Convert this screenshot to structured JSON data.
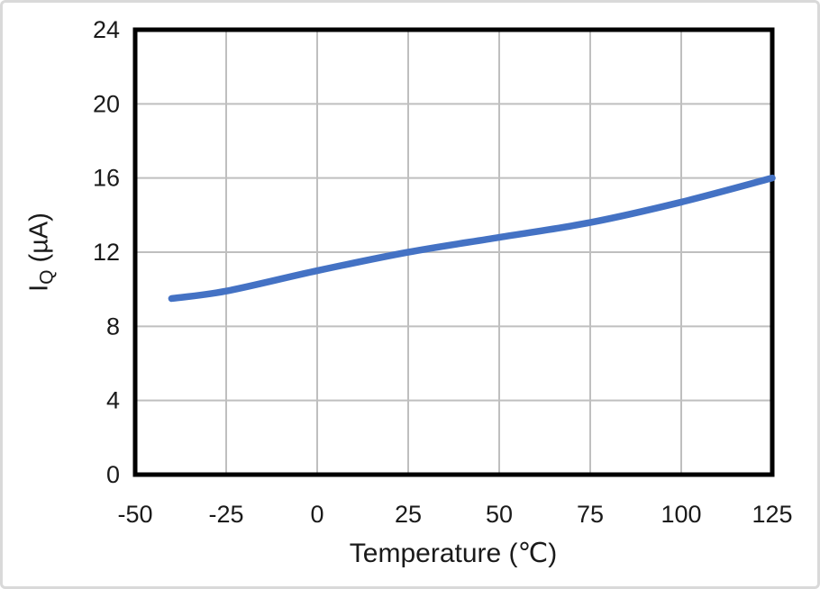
{
  "frame": {
    "background": "#ffffff",
    "border_color": "#d9d9d9"
  },
  "chart_data": {
    "type": "line",
    "title": "",
    "xlabel": "Temperature (℃)",
    "ylabel": "IQ (µA)",
    "ylabel_parts": {
      "base": "I",
      "sub": "Q",
      "unit": " (µA)"
    },
    "series": [
      {
        "name": "IQ",
        "x": [
          -40,
          -25,
          0,
          25,
          50,
          75,
          100,
          125
        ],
        "values": [
          9.5,
          9.9,
          11.0,
          12.0,
          12.8,
          13.6,
          14.7,
          16.0
        ]
      }
    ],
    "xlim": [
      -50,
      125
    ],
    "ylim": [
      0,
      24
    ],
    "x_ticks": [
      -50,
      -25,
      0,
      25,
      50,
      75,
      100,
      125
    ],
    "y_ticks": [
      0,
      4,
      8,
      12,
      16,
      20,
      24
    ],
    "grid": true,
    "legend_position": "none",
    "line_color": "#4472C4",
    "grid_color": "#BFBFBF",
    "axis_color": "#000000",
    "text_color": "#1a1a1a"
  }
}
